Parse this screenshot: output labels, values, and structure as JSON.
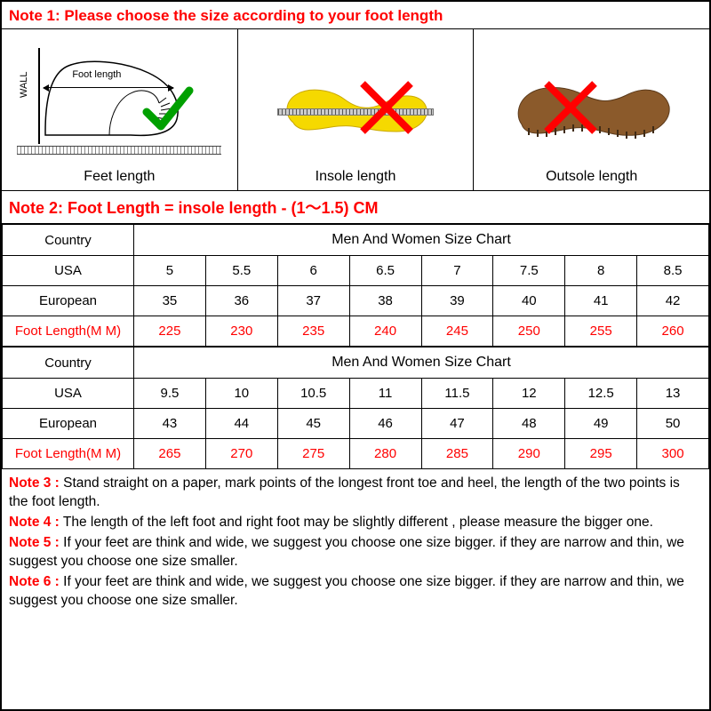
{
  "colors": {
    "red": "#ff0000",
    "black": "#000000",
    "yellow": "#f5d900",
    "green": "#00a000",
    "brown": "#8b5a2b"
  },
  "note1": "Note 1: Please choose the size according to your foot length",
  "diagrams": {
    "feet": {
      "label": "Feet length",
      "wall_text": "WALL",
      "inner_label": "Foot length"
    },
    "insole": {
      "label": "Insole length"
    },
    "outsole": {
      "label": "Outsole length"
    }
  },
  "note2": "Note 2: Foot Length = insole length  -  (1～1.5) CM",
  "table1": {
    "header_label": "Country",
    "header_span": "Men And Women Size Chart",
    "rows": [
      {
        "label": "USA",
        "v": [
          "5",
          "5.5",
          "6",
          "6.5",
          "7",
          "7.5",
          "8",
          "8.5"
        ],
        "red": false
      },
      {
        "label": "European",
        "v": [
          "35",
          "36",
          "37",
          "38",
          "39",
          "40",
          "41",
          "42"
        ],
        "red": false
      },
      {
        "label": "Foot Length(M M)",
        "v": [
          "225",
          "230",
          "235",
          "240",
          "245",
          "250",
          "255",
          "260"
        ],
        "red": true
      }
    ]
  },
  "table2": {
    "header_label": "Country",
    "header_span": "Men And Women Size Chart",
    "rows": [
      {
        "label": "USA",
        "v": [
          "9.5",
          "10",
          "10.5",
          "11",
          "11.5",
          "12",
          "12.5",
          "13"
        ],
        "red": false
      },
      {
        "label": "European",
        "v": [
          "43",
          "44",
          "45",
          "46",
          "47",
          "48",
          "49",
          "50"
        ],
        "red": false
      },
      {
        "label": "Foot Length(M M)",
        "v": [
          "265",
          "270",
          "275",
          "280",
          "285",
          "290",
          "295",
          "300"
        ],
        "red": true
      }
    ]
  },
  "notes": [
    {
      "label": "Note 3 :",
      "text": " Stand straight on a paper, mark points of the longest front toe and heel, the length of the two points is the foot length."
    },
    {
      "label": "Note 4 :",
      "text": " The length of the left foot and right foot may be slightly different , please measure the bigger one."
    },
    {
      "label": "Note 5 :",
      "text": " If your feet are think and wide, we suggest you choose one size bigger. if they are narrow and thin, we suggest you choose one size smaller."
    },
    {
      "label": "Note 6 :",
      "text": " If your feet are think and wide, we suggest you choose one size bigger. if they are narrow and thin, we suggest you choose one size smaller."
    }
  ]
}
